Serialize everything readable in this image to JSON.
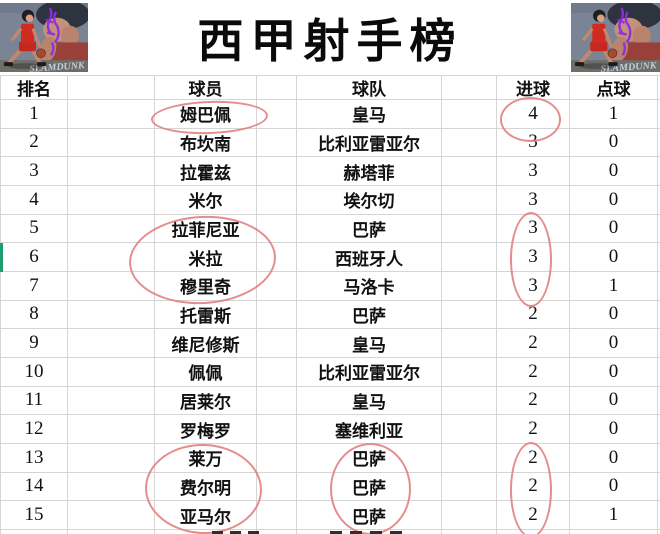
{
  "title": "西甲射手榜",
  "artwork": {
    "name": "slam-dunk-artwork",
    "caption": "SLAMDUNK"
  },
  "table": {
    "headers": {
      "rank": "排名",
      "player": "球员",
      "team": "球队",
      "goals": "进球",
      "penalties": "点球"
    },
    "rows": [
      {
        "rank": "1",
        "player": "姆巴佩",
        "team": "皇马",
        "goals": "4",
        "penalties": "1"
      },
      {
        "rank": "2",
        "player": "布坎南",
        "team": "比利亚雷亚尔",
        "goals": "3",
        "penalties": "0"
      },
      {
        "rank": "3",
        "player": "拉霍兹",
        "team": "赫塔菲",
        "goals": "3",
        "penalties": "0"
      },
      {
        "rank": "4",
        "player": "米尔",
        "team": "埃尔切",
        "goals": "3",
        "penalties": "0"
      },
      {
        "rank": "5",
        "player": "拉菲尼亚",
        "team": "巴萨",
        "goals": "3",
        "penalties": "0"
      },
      {
        "rank": "6",
        "player": "米拉",
        "team": "西班牙人",
        "goals": "3",
        "penalties": "0"
      },
      {
        "rank": "7",
        "player": "穆里奇",
        "team": "马洛卡",
        "goals": "3",
        "penalties": "1"
      },
      {
        "rank": "8",
        "player": "托雷斯",
        "team": "巴萨",
        "goals": "2",
        "penalties": "0"
      },
      {
        "rank": "9",
        "player": "维尼修斯",
        "team": "皇马",
        "goals": "2",
        "penalties": "0"
      },
      {
        "rank": "10",
        "player": "佩佩",
        "team": "比利亚雷亚尔",
        "goals": "2",
        "penalties": "0"
      },
      {
        "rank": "11",
        "player": "居莱尔",
        "team": "皇马",
        "goals": "2",
        "penalties": "0"
      },
      {
        "rank": "12",
        "player": "罗梅罗",
        "team": "塞维利亚",
        "goals": "2",
        "penalties": "0"
      },
      {
        "rank": "13",
        "player": "莱万",
        "team": "巴萨",
        "goals": "2",
        "penalties": "0"
      },
      {
        "rank": "14",
        "player": "费尔明",
        "team": "巴萨",
        "goals": "2",
        "penalties": "0"
      },
      {
        "rank": "15",
        "player": "亚马尔",
        "team": "巴萨",
        "goals": "2",
        "penalties": "1"
      }
    ]
  },
  "annotations": {
    "circle_color": "#e17d7d",
    "selection_color": "#1f9e6d",
    "grid_color": "#d5d5d5",
    "circled": [
      "row1-player",
      "row1-goals",
      "rows5-7-players",
      "rows5-7-goals",
      "rows13-15-players",
      "rows13-15-teams",
      "rows13-15-goals"
    ],
    "selected_row": "6"
  }
}
